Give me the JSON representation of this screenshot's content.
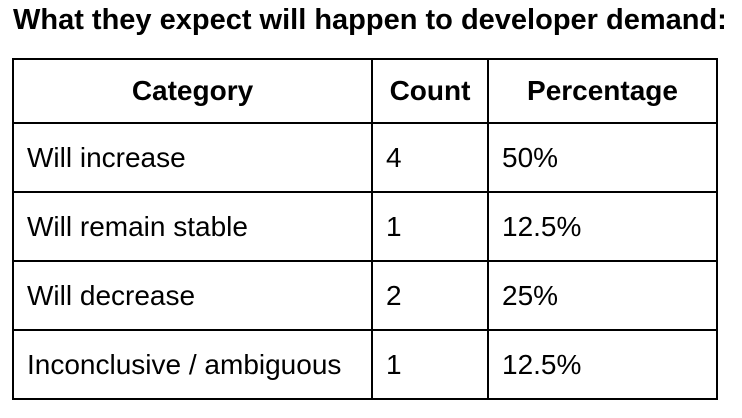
{
  "title": "What they expect will happen to developer demand:",
  "table": {
    "columns": [
      "Category",
      "Count",
      "Percentage"
    ],
    "rows": [
      {
        "category": "Will increase",
        "count": "4",
        "percentage": "50%"
      },
      {
        "category": "Will remain stable",
        "count": "1",
        "percentage": "12.5%"
      },
      {
        "category": "Will decrease",
        "count": "2",
        "percentage": "25%"
      },
      {
        "category": "Inconclusive / ambiguous",
        "count": "1",
        "percentage": "12.5%"
      }
    ]
  },
  "colors": {
    "text": "#000000",
    "border": "#000000",
    "background": "#ffffff"
  }
}
